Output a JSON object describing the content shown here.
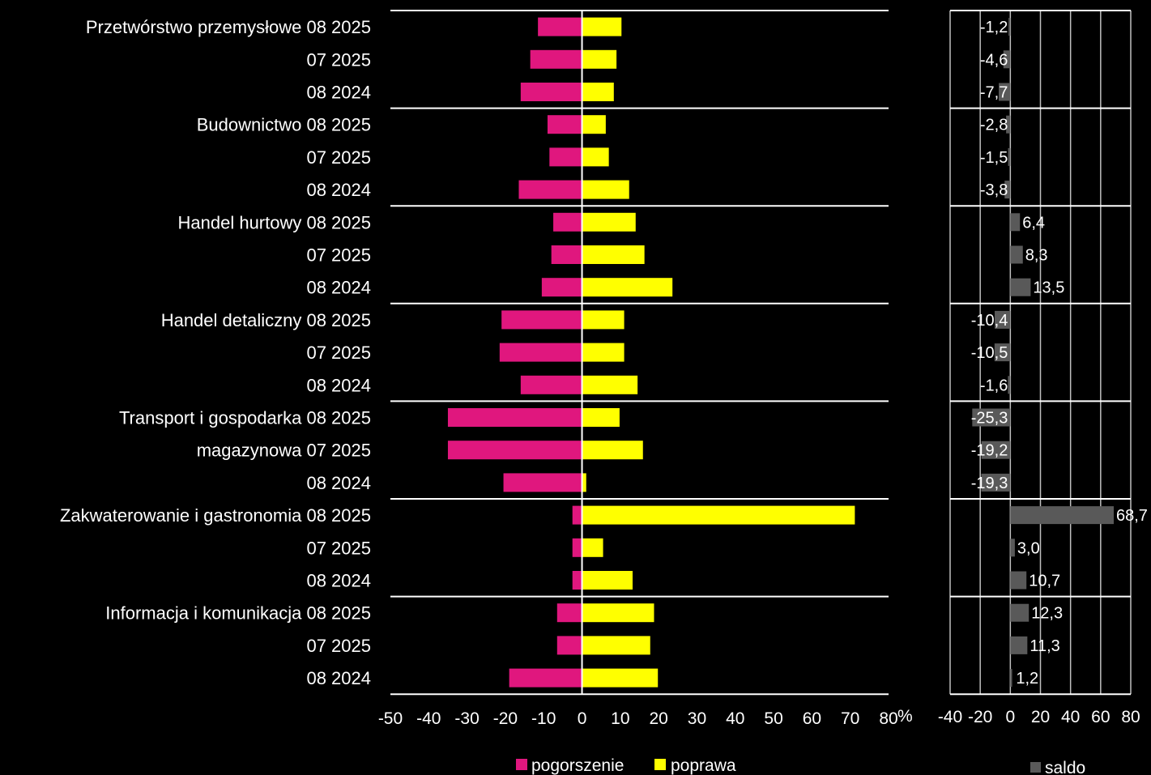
{
  "chart_data": [
    {
      "type": "bar",
      "orientation": "horizontal",
      "categories": [
        "Przetwórstwo przemysłowe 08 2025",
        "07 2025",
        "08 2024",
        "Budownictwo 08 2025",
        "07 2025",
        "08 2024",
        "Handel hurtowy 08 2025",
        "07 2025",
        "08 2024",
        "Handel detaliczny 08 2025",
        "07 2025",
        "08 2024",
        "Transport i gospodarka 08 2025",
        "magazynowa 07 2025",
        "08 2024",
        "Zakwaterowanie i gastronomia 08 2025",
        "07 2025",
        "08 2024",
        "Informacja i komunikacja 08 2025",
        "07 2025",
        "08 2024"
      ],
      "series": [
        {
          "name": "pogorszenie",
          "color": "#e0177e",
          "values": [
            -11.5,
            -13.5,
            -16,
            -9,
            -8.5,
            -16.5,
            -7.5,
            -8,
            -10.5,
            -21,
            -21.5,
            -16,
            -35,
            -35,
            -20.5,
            -2.5,
            -2.5,
            -2.5,
            -6.5,
            -6.5,
            -19
          ]
        },
        {
          "name": "poprawa",
          "color": "#ffff00",
          "values": [
            10.3,
            9,
            8.3,
            6.2,
            7,
            12.3,
            14,
            16.3,
            23.6,
            11,
            11,
            14.5,
            9.8,
            15.9,
            1.1,
            71.2,
            5.5,
            13.2,
            18.8,
            17.8,
            19.8
          ]
        }
      ],
      "xlim": [
        -50,
        80
      ],
      "xticks": [
        "-50",
        "-40",
        "-30",
        "-20",
        "-10",
        "0",
        "10",
        "20",
        "30",
        "40",
        "50",
        "60",
        "70",
        "80"
      ],
      "unit": "%",
      "gridlines": "group separators",
      "legend": "bottom"
    },
    {
      "type": "bar",
      "orientation": "horizontal",
      "series": [
        {
          "name": "saldo",
          "color": "#595959",
          "values": [
            -1.2,
            -4.6,
            -7.7,
            -2.8,
            -1.5,
            -3.8,
            6.4,
            8.3,
            13.5,
            -10.4,
            -10.5,
            -1.6,
            -25.3,
            -19.2,
            -19.3,
            68.7,
            3.0,
            10.7,
            12.3,
            11.3,
            1.2
          ],
          "labels": [
            "-1,2",
            "-4,6",
            "-7,7",
            "-2,8",
            "-1,5",
            "-3,8",
            "6,4",
            "8,3",
            "13,5",
            "-10,4",
            "-10,5",
            "-1,6",
            "-25,3",
            "-19,2",
            "-19,3",
            "68,7",
            "3,0",
            "10,7",
            "12,3",
            "11,3",
            "1,2"
          ]
        }
      ],
      "xlim": [
        -40,
        80
      ],
      "xticks": [
        "-40",
        "-20",
        "0",
        "20",
        "40",
        "60",
        "80"
      ],
      "grid": true,
      "legend": "bottom"
    }
  ]
}
